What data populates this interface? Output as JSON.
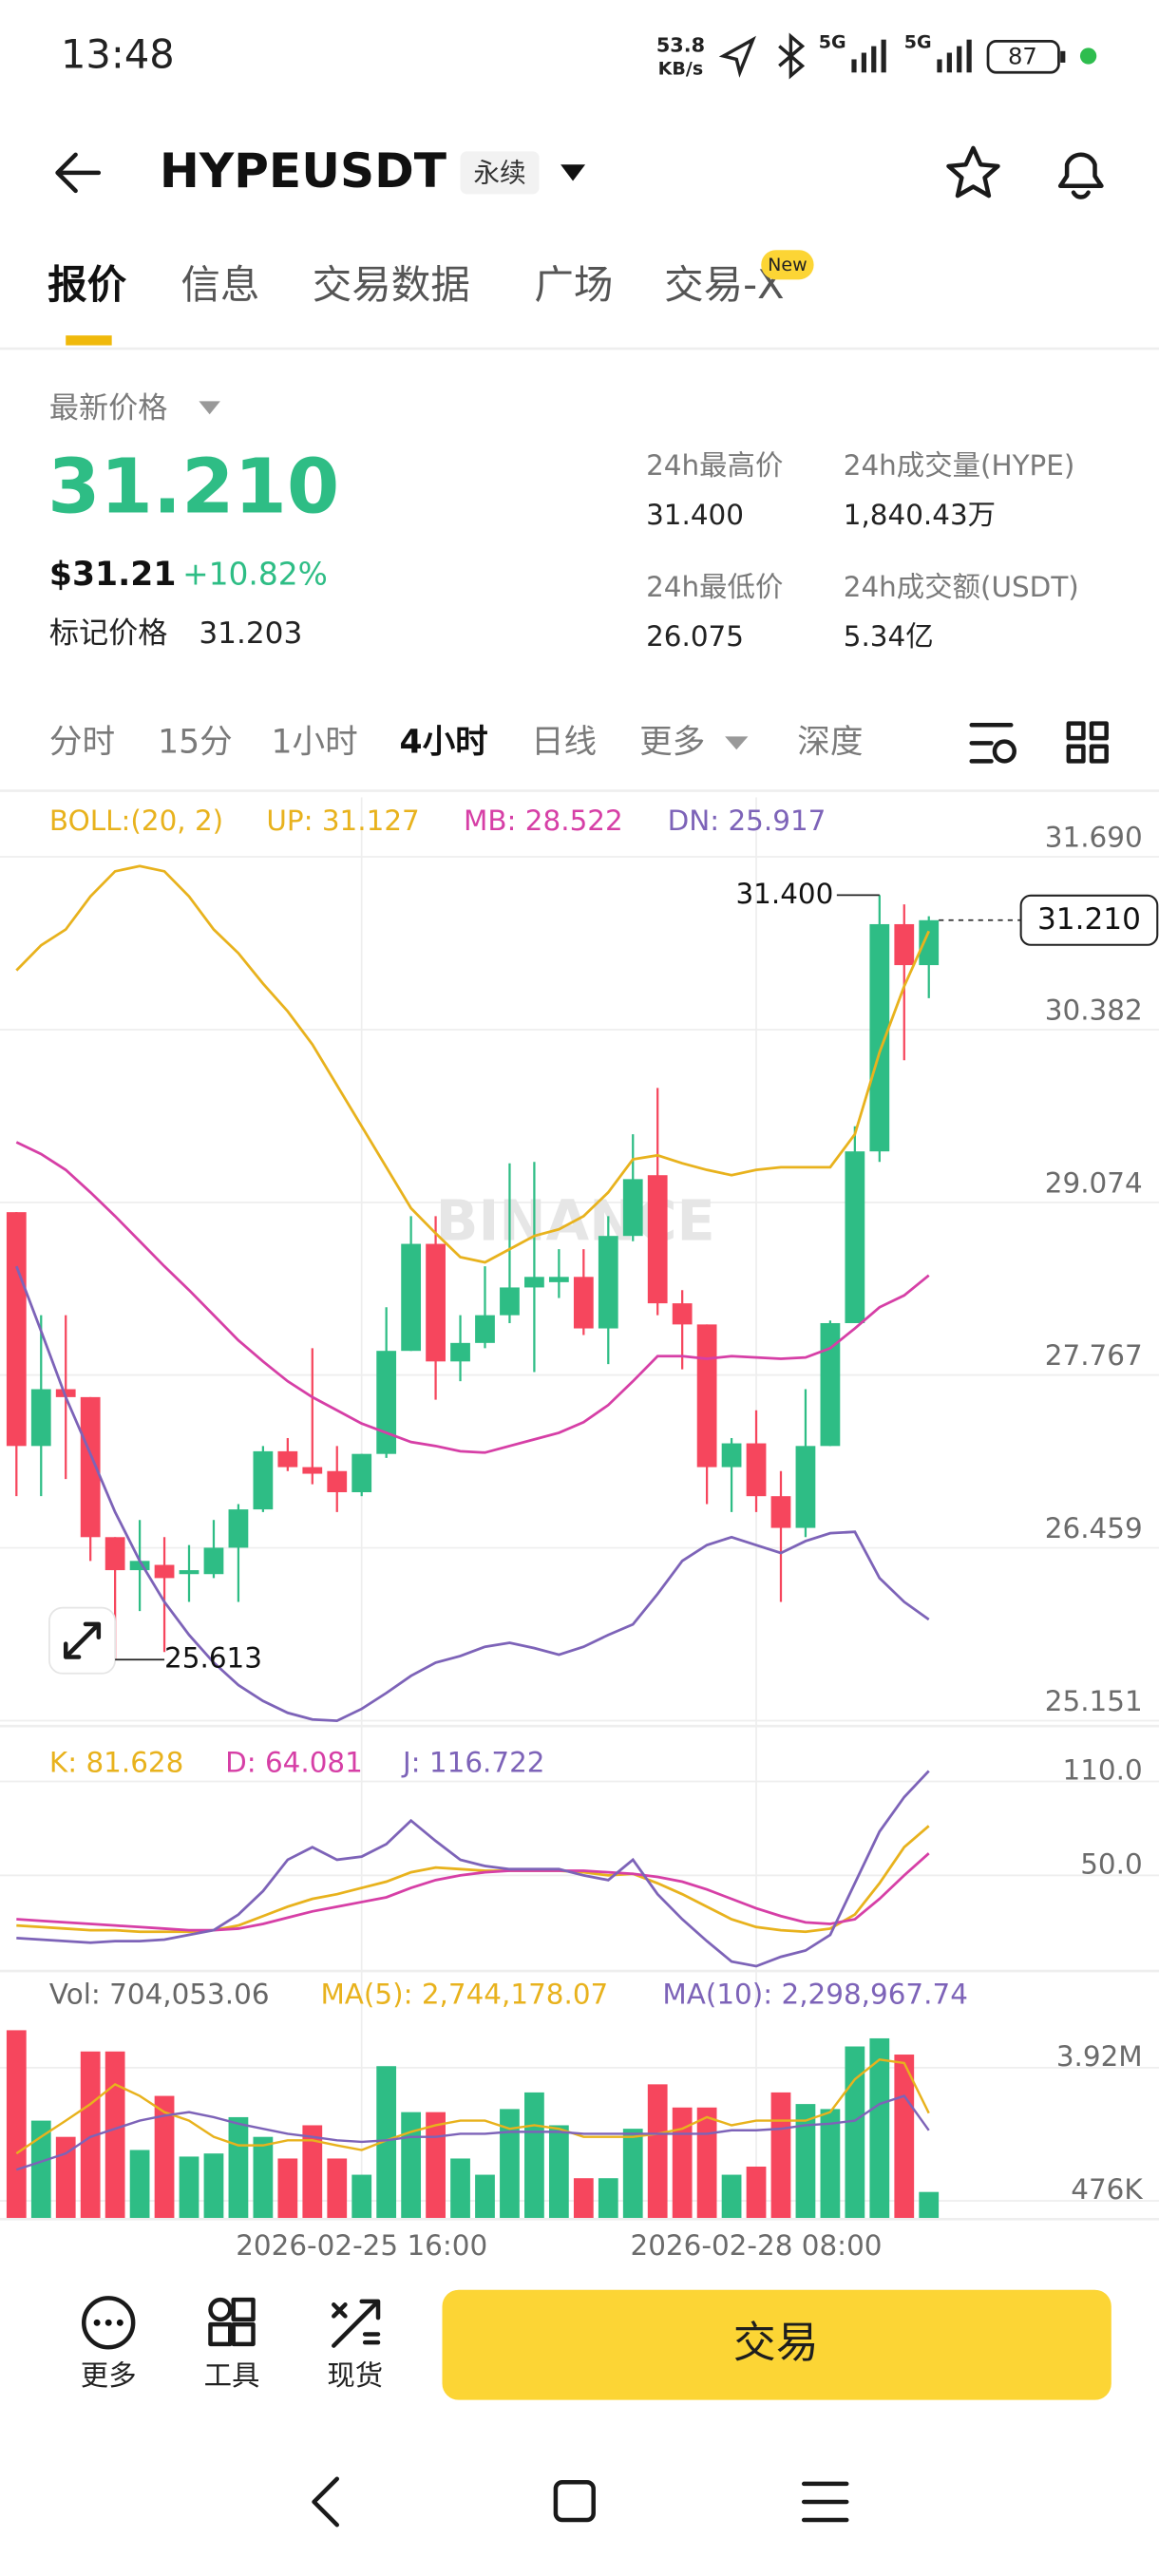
{
  "status_bar": {
    "time": "13:48",
    "net_speed": "53.8",
    "net_unit": "KB/s",
    "signal_1": "5G",
    "signal_2": "5G",
    "battery": "87"
  },
  "header": {
    "symbol": "HYPEUSDT",
    "contract": "永续"
  },
  "tabs": [
    "报价",
    "信息",
    "交易数据",
    "广场",
    "交易-X"
  ],
  "tab_badge": "New",
  "ticker": {
    "last_price_title": "最新价格",
    "last_price": "31.210",
    "usd_price": "$31.21",
    "change": "+10.82%",
    "mark_price_title": "标记价格",
    "mark_price": "31.203",
    "high_title": "24h最高价",
    "high": "31.400",
    "volume_title": "24h成交量(HYPE)",
    "volume": "1,840.43万",
    "low_title": "24h最低价",
    "low": "26.075",
    "turnover_title": "24h成交额(USDT)",
    "turnover": "5.34亿"
  },
  "timeframes": [
    "分时",
    "15分",
    "1小时",
    "4小时",
    "日线",
    "更多",
    "深度"
  ],
  "chart_data": [
    {
      "type": "candlestick",
      "indicator_title": "BOLL:(20, 2)",
      "watermark": "BINANCE",
      "up_color": "#2ebd85",
      "down_color": "#f6465d",
      "open": [
        29.0,
        27.23,
        27.66,
        27.6,
        26.54,
        26.29,
        26.33,
        26.26,
        26.26,
        26.46,
        26.75,
        27.19,
        27.07,
        27.04,
        26.88,
        27.17,
        27.95,
        28.76,
        27.87,
        28.01,
        28.22,
        28.43,
        28.47,
        28.51,
        28.12,
        28.82,
        29.28,
        28.31,
        28.15,
        27.07,
        27.25,
        26.85,
        26.61,
        27.23,
        28.16,
        29.46,
        31.18,
        30.87
      ],
      "high": [
        29.0,
        28.22,
        28.22,
        27.6,
        26.54,
        26.67,
        26.54,
        26.48,
        26.67,
        26.79,
        27.23,
        27.29,
        27.97,
        27.23,
        27.17,
        28.28,
        28.97,
        28.97,
        28.22,
        28.59,
        29.37,
        29.38,
        28.72,
        28.72,
        28.97,
        29.59,
        29.94,
        28.41,
        28.15,
        27.29,
        27.5,
        27.04,
        27.66,
        28.18,
        29.65,
        31.4,
        31.33,
        31.24
      ],
      "low": [
        26.85,
        26.85,
        26.98,
        26.36,
        25.613,
        25.98,
        25.67,
        26.05,
        26.23,
        26.05,
        26.73,
        27.04,
        26.94,
        26.73,
        26.85,
        27.14,
        27.95,
        27.58,
        27.72,
        27.97,
        28.16,
        27.79,
        28.35,
        28.07,
        27.85,
        28.78,
        28.22,
        27.81,
        26.79,
        26.73,
        26.73,
        26.05,
        26.54,
        27.23,
        28.16,
        29.38,
        30.15,
        30.62
      ],
      "close": [
        27.23,
        27.66,
        27.6,
        26.54,
        26.29,
        26.36,
        26.23,
        26.29,
        26.46,
        26.75,
        27.19,
        27.07,
        27.02,
        26.88,
        27.17,
        27.95,
        28.76,
        27.87,
        28.01,
        28.22,
        28.43,
        28.51,
        28.51,
        28.12,
        28.82,
        29.25,
        28.31,
        28.15,
        27.07,
        27.25,
        26.85,
        26.61,
        27.23,
        28.16,
        29.46,
        31.18,
        30.87,
        31.21
      ],
      "series": [
        {
          "name": "UP: 31.127",
          "color": "#e8b21d",
          "values": [
            30.83,
            31.02,
            31.14,
            31.39,
            31.58,
            31.62,
            31.58,
            31.39,
            31.14,
            30.96,
            30.73,
            30.52,
            30.27,
            29.96,
            29.65,
            29.34,
            29.03,
            28.84,
            28.66,
            28.62,
            28.72,
            28.82,
            28.87,
            28.97,
            29.15,
            29.4,
            29.43,
            29.37,
            29.32,
            29.28,
            29.32,
            29.34,
            29.34,
            29.34,
            29.59,
            30.21,
            30.71,
            31.127
          ]
        },
        {
          "name": "MB: 28.522",
          "color": "#d63fa6",
          "values": [
            29.53,
            29.44,
            29.32,
            29.15,
            28.97,
            28.78,
            28.59,
            28.41,
            28.22,
            28.03,
            27.87,
            27.72,
            27.6,
            27.5,
            27.4,
            27.33,
            27.26,
            27.23,
            27.19,
            27.18,
            27.23,
            27.28,
            27.33,
            27.41,
            27.54,
            27.72,
            27.91,
            27.91,
            27.89,
            27.91,
            27.9,
            27.89,
            27.9,
            27.97,
            28.12,
            28.28,
            28.37,
            28.522
          ]
        },
        {
          "name": "DN: 25.917",
          "color": "#7d63b8",
          "values": [
            28.59,
            28.1,
            27.6,
            27.17,
            26.73,
            26.36,
            26.05,
            25.8,
            25.59,
            25.42,
            25.3,
            25.21,
            25.16,
            25.15,
            25.24,
            25.36,
            25.49,
            25.59,
            25.64,
            25.71,
            25.74,
            25.7,
            25.65,
            25.71,
            25.8,
            25.88,
            26.11,
            26.36,
            26.48,
            26.54,
            26.48,
            26.42,
            26.51,
            26.57,
            26.58,
            26.23,
            26.05,
            25.917
          ]
        }
      ],
      "ylim": [
        25.11,
        32.14
      ],
      "yticks": [
        {
          "value": 31.69,
          "label": "31.690"
        },
        {
          "value": 30.382,
          "label": "30.382"
        },
        {
          "value": 29.074,
          "label": "29.074"
        },
        {
          "value": 27.767,
          "label": "27.767"
        },
        {
          "value": 26.459,
          "label": "26.459"
        },
        {
          "value": 25.151,
          "label": "25.151"
        }
      ],
      "high_label": "31.400",
      "low_label": "25.613",
      "last_price_label": "31.210",
      "grid": true
    },
    {
      "type": "line",
      "series": [
        {
          "name": "K: 81.628",
          "color": "#e8b21d",
          "values": [
            18,
            17,
            16,
            15,
            15,
            14,
            14,
            14,
            15,
            18,
            24,
            30,
            35,
            38,
            42,
            46,
            52,
            55,
            54,
            53,
            53,
            53,
            53,
            52,
            50,
            51,
            45,
            38,
            30,
            22,
            17,
            15,
            14,
            16,
            25,
            45,
            68,
            81.628
          ]
        },
        {
          "name": "D: 64.081",
          "color": "#d63fa6",
          "values": [
            22,
            21,
            20,
            19,
            18,
            17,
            16,
            15,
            15,
            16,
            19,
            23,
            27,
            30,
            33,
            36,
            42,
            47,
            50,
            52,
            53,
            53,
            53,
            53,
            52,
            51,
            49,
            46,
            41,
            35,
            29,
            24,
            20,
            19,
            22,
            35,
            50,
            64.081
          ]
        },
        {
          "name": "J: 116.722",
          "color": "#7d63b8",
          "values": [
            10,
            9,
            8,
            7,
            8,
            8,
            9,
            12,
            15,
            25,
            40,
            60,
            68,
            60,
            62,
            70,
            85,
            72,
            60,
            56,
            54,
            54,
            54,
            50,
            47,
            60,
            38,
            22,
            8,
            -5,
            -8,
            -2,
            2,
            12,
            45,
            78,
            100,
            116.722
          ]
        }
      ],
      "ylim": [
        -10,
        137
      ],
      "yticks": [
        {
          "value": 110,
          "label": "110.0"
        },
        {
          "value": 50,
          "label": "50.0"
        }
      ]
    },
    {
      "type": "bar",
      "categories": [
        null,
        null,
        null,
        null,
        null,
        null,
        null,
        null,
        null,
        null,
        null,
        null,
        null,
        null,
        "2026-02-25 16:00",
        null,
        null,
        null,
        null,
        null,
        null,
        null,
        null,
        null,
        null,
        null,
        null,
        null,
        null,
        null,
        "2026-02-28 08:00",
        null,
        null,
        null,
        null,
        null,
        null,
        null
      ],
      "series": [
        {
          "name": "Vol: 704,053.06",
          "color": "#666666",
          "values": [
            4890000,
            2550000,
            2130000,
            4340000,
            4340000,
            1790000,
            3190000,
            1620000,
            1700000,
            2640000,
            2130000,
            1570000,
            2430000,
            1570000,
            1150000,
            3960000,
            2770000,
            2770000,
            1570000,
            1150000,
            2850000,
            3280000,
            2430000,
            1060000,
            1060000,
            2340000,
            3490000,
            2890000,
            2890000,
            1150000,
            1360000,
            3280000,
            2980000,
            2850000,
            4470000,
            4680000,
            4260000,
            704053.06
          ]
        },
        {
          "name": "MA(5): 2,744,178.07",
          "color": "#e8b21d",
          "values": [
            1700000,
            2130000,
            2550000,
            2980000,
            3490000,
            3190000,
            2770000,
            2550000,
            2130000,
            1910000,
            1910000,
            2040000,
            2040000,
            1910000,
            1790000,
            2040000,
            2260000,
            2430000,
            2550000,
            2550000,
            2340000,
            2430000,
            2340000,
            2130000,
            2130000,
            2130000,
            2210000,
            2340000,
            2640000,
            2430000,
            2550000,
            2550000,
            2550000,
            2770000,
            3620000,
            4130000,
            4040000,
            2744178.07
          ]
        },
        {
          "name": "MA(10): 2,298,967.74",
          "color": "#7d63b8",
          "values": [
            1280000,
            1490000,
            1700000,
            2130000,
            2340000,
            2550000,
            2680000,
            2770000,
            2640000,
            2470000,
            2340000,
            2210000,
            2130000,
            2040000,
            2000000,
            2040000,
            2130000,
            2130000,
            2210000,
            2210000,
            2260000,
            2260000,
            2260000,
            2210000,
            2210000,
            2210000,
            2210000,
            2210000,
            2210000,
            2300000,
            2300000,
            2340000,
            2430000,
            2470000,
            2550000,
            2980000,
            3190000,
            2298967.74
          ]
        }
      ],
      "ylim": [
        0,
        5190000
      ],
      "yticks": [
        {
          "value": 3920000,
          "label": "3.92M"
        },
        {
          "value": 476000,
          "label": "476K"
        }
      ]
    }
  ],
  "bottom_bar": {
    "more": "更多",
    "tools": "工具",
    "spot": "现货",
    "trade": "交易"
  }
}
